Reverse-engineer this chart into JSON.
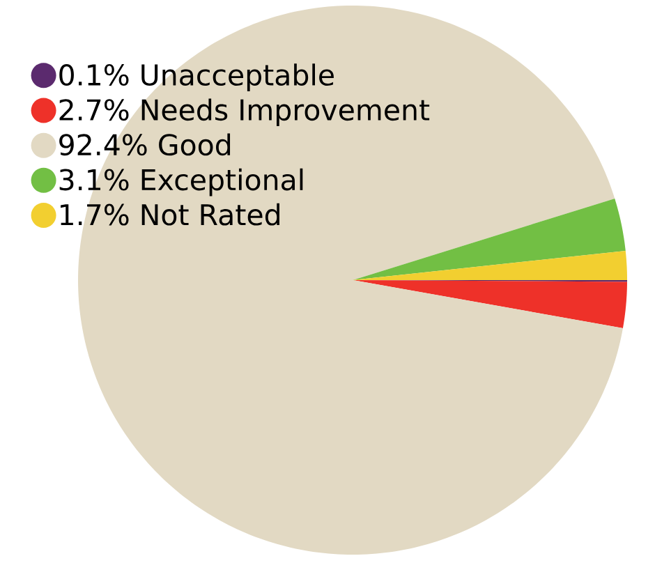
{
  "chart_data": {
    "type": "pie",
    "categories": [
      "0.1% Unacceptable",
      "2.7% Needs Improvement",
      "92.4% Good",
      "3.1% Exceptional",
      "1.7% Not Rated"
    ],
    "values": [
      0.1,
      2.7,
      92.4,
      3.1,
      1.7
    ],
    "colors": [
      "#5b2a6e",
      "#ee3129",
      "#e2d9c3",
      "#72bf44",
      "#f2cf30"
    ],
    "legend": "top left"
  }
}
